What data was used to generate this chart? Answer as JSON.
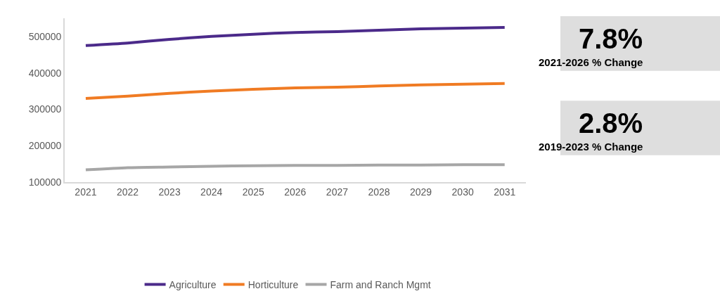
{
  "chart_data": [
    {
      "type": "line",
      "categories": [
        "2021",
        "2022",
        "2023",
        "2024",
        "2025",
        "2026",
        "2027",
        "2028",
        "2029",
        "2030",
        "2031"
      ],
      "series": [
        {
          "name": "Agriculture",
          "color": "#4b2a8a",
          "values": [
            475000,
            482000,
            492000,
            500000,
            506000,
            511000,
            513000,
            517000,
            521000,
            523000,
            525000
          ]
        },
        {
          "name": "Horticulture",
          "color": "#f07b23",
          "values": [
            330000,
            336000,
            344000,
            350000,
            355000,
            359000,
            361000,
            364000,
            367000,
            369000,
            371000
          ]
        },
        {
          "name": "Farm and Ranch Mgmt",
          "color": "#a6a6a6",
          "values": [
            134000,
            140000,
            142000,
            144000,
            145000,
            146000,
            146000,
            147000,
            147000,
            148000,
            148000
          ]
        }
      ],
      "ylim": [
        100000,
        550000
      ],
      "yticks": [
        100000,
        200000,
        300000,
        400000,
        500000
      ],
      "legend": "bottom",
      "marker": "none",
      "line_style": "solid"
    },
    {
      "type": "other",
      "title": "7.8%",
      "subtitle": "2021-2026 % Change"
    },
    {
      "type": "other",
      "title": "2.8%",
      "subtitle": "2019-2023 % Change"
    }
  ]
}
